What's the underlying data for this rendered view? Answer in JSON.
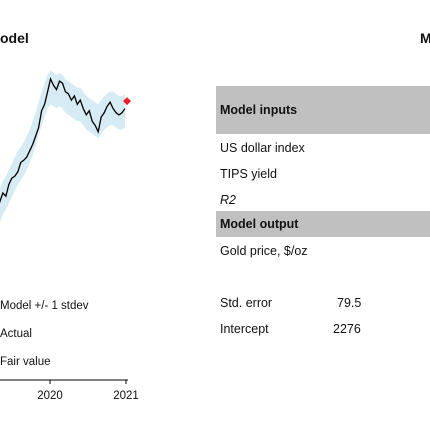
{
  "titles": {
    "left": "odel",
    "right": "M"
  },
  "chart_data": {
    "type": "line",
    "x_ticks": [
      "2020",
      "2021"
    ],
    "series": [
      {
        "role": "actual",
        "values": [
          1290,
          1300,
          1335,
          1330,
          1380,
          1420,
          1405,
          1460,
          1490,
          1500,
          1520,
          1565,
          1575,
          1590,
          1620,
          1650,
          1690,
          1730,
          1810,
          1840,
          1900,
          1960,
          1930,
          1910,
          1950,
          1940,
          1900,
          1890,
          1860,
          1880,
          1840,
          1860,
          1820,
          1790,
          1810,
          1760,
          1740,
          1710,
          1780,
          1800,
          1830,
          1850,
          1820,
          1800,
          1790,
          1800,
          1820
        ]
      },
      {
        "role": "model",
        "values": [
          1250,
          1280,
          1310,
          1330,
          1360,
          1400,
          1420,
          1450,
          1480,
          1510,
          1540,
          1560,
          1580,
          1610,
          1640,
          1680,
          1720,
          1770,
          1820,
          1860,
          1900,
          1920,
          1910,
          1900,
          1910,
          1900,
          1880,
          1870,
          1860,
          1850,
          1840,
          1840,
          1820,
          1800,
          1790,
          1780,
          1770,
          1760,
          1780,
          1800,
          1810,
          1820,
          1820,
          1810,
          1800,
          1800,
          1810
        ]
      }
    ],
    "band_width": 79.5,
    "fair_value": 1855,
    "ylim": [
      1150,
      2050
    ],
    "colors": {
      "actual": "#000000",
      "band": "#d6ebf3",
      "fair_value": "#e8202a"
    },
    "legend": [
      {
        "key": "band",
        "label": "Model +/- 1 stdev"
      },
      {
        "key": "actual",
        "label": "Actual"
      },
      {
        "key": "fair_value",
        "label": "Fair value"
      }
    ]
  },
  "panel": {
    "inputs_header": "Model inputs",
    "input_rows": [
      "US dollar index",
      "TIPS yield",
      "R2"
    ],
    "output_header": "Model output",
    "output_rows": [
      "Gold price, $/oz"
    ],
    "stats": [
      {
        "label": "Std. error",
        "value": "79.5"
      },
      {
        "label": "Intercept",
        "value": "2276"
      }
    ]
  }
}
